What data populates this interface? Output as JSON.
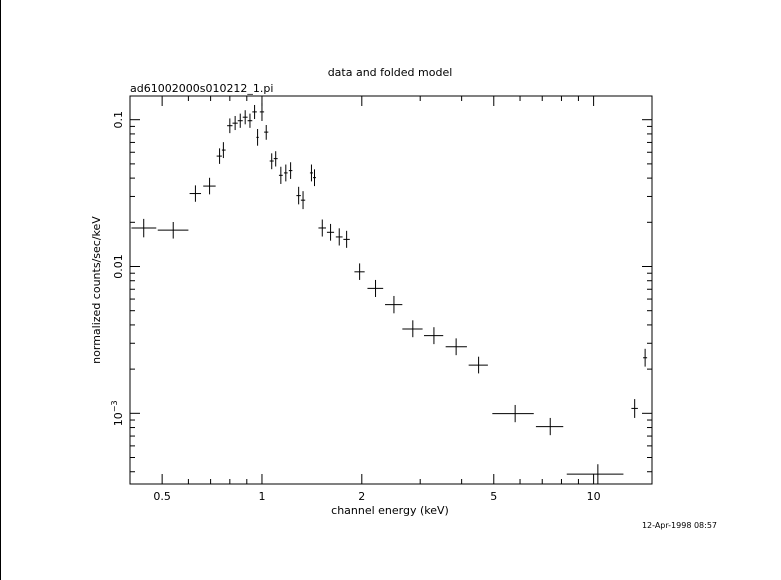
{
  "chart_data": {
    "type": "scatter",
    "title": "data and folded model",
    "subtitle": "ad61002000s010212_1.pi",
    "xlabel": "channel energy (keV)",
    "ylabel": "normalized counts/sec/keV",
    "timestamp": "12-Apr-1998 08:57",
    "x_scale": "log",
    "y_scale": "log",
    "xlim": [
      0.4,
      15
    ],
    "ylim": [
      0.00033,
      0.145
    ],
    "x_ticks": [
      {
        "value": 0.5,
        "label": "0.5"
      },
      {
        "value": 1,
        "label": "1"
      },
      {
        "value": 2,
        "label": "2"
      },
      {
        "value": 5,
        "label": "5"
      },
      {
        "value": 10,
        "label": "10"
      }
    ],
    "y_ticks": [
      {
        "value": 0.1,
        "label": "0.1"
      },
      {
        "value": 0.01,
        "label": "0.01"
      },
      {
        "value": 0.001,
        "label": "10^-3"
      }
    ],
    "grid": false,
    "points": [
      {
        "x": 0.44,
        "y": 0.0183,
        "xerr": [
          0.404,
          0.48
        ],
        "yerr": [
          0.0158,
          0.0211
        ]
      },
      {
        "x": 0.54,
        "y": 0.0177,
        "xerr": [
          0.485,
          0.6
        ],
        "yerr": [
          0.0155,
          0.0201
        ]
      },
      {
        "x": 0.63,
        "y": 0.0314,
        "xerr": [
          0.605,
          0.655
        ],
        "yerr": [
          0.0276,
          0.0357
        ]
      },
      {
        "x": 0.695,
        "y": 0.0353,
        "xerr": [
          0.665,
          0.725
        ],
        "yerr": [
          0.031,
          0.0402
        ]
      },
      {
        "x": 0.745,
        "y": 0.0565,
        "xerr": [
          0.73,
          0.757
        ],
        "yerr": [
          0.05,
          0.0638
        ]
      },
      {
        "x": 0.765,
        "y": 0.0621,
        "xerr": [
          0.757,
          0.777
        ],
        "yerr": [
          0.0548,
          0.0703
        ]
      },
      {
        "x": 0.8,
        "y": 0.091,
        "xerr": [
          0.785,
          0.815
        ],
        "yerr": [
          0.081,
          0.102
        ]
      },
      {
        "x": 0.83,
        "y": 0.0947,
        "xerr": [
          0.815,
          0.845
        ],
        "yerr": [
          0.085,
          0.106
        ]
      },
      {
        "x": 0.86,
        "y": 0.0984,
        "xerr": [
          0.845,
          0.875
        ],
        "yerr": [
          0.088,
          0.11
        ]
      },
      {
        "x": 0.89,
        "y": 0.104,
        "xerr": [
          0.875,
          0.905
        ],
        "yerr": [
          0.093,
          0.116
        ]
      },
      {
        "x": 0.92,
        "y": 0.0984,
        "xerr": [
          0.905,
          0.935
        ],
        "yerr": [
          0.088,
          0.11
        ]
      },
      {
        "x": 0.95,
        "y": 0.113,
        "xerr": [
          0.935,
          0.965
        ],
        "yerr": [
          0.101,
          0.126
        ]
      },
      {
        "x": 0.97,
        "y": 0.0758,
        "xerr": [
          0.962,
          0.978
        ],
        "yerr": [
          0.0665,
          0.0864
        ]
      },
      {
        "x": 1.0,
        "y": 0.113,
        "xerr": [
          0.985,
          1.015
        ],
        "yerr": [
          0.098,
          0.13
        ]
      },
      {
        "x": 1.03,
        "y": 0.0823,
        "xerr": [
          1.015,
          1.045
        ],
        "yerr": [
          0.073,
          0.092
        ]
      },
      {
        "x": 1.07,
        "y": 0.0523,
        "xerr": [
          1.055,
          1.085
        ],
        "yerr": [
          0.046,
          0.059
        ]
      },
      {
        "x": 1.1,
        "y": 0.0543,
        "xerr": [
          1.085,
          1.115
        ],
        "yerr": [
          0.048,
          0.061
        ]
      },
      {
        "x": 1.14,
        "y": 0.0418,
        "xerr": [
          1.125,
          1.155
        ],
        "yerr": [
          0.0365,
          0.0478
        ]
      },
      {
        "x": 1.18,
        "y": 0.0434,
        "xerr": [
          1.165,
          1.195
        ],
        "yerr": [
          0.038,
          0.0495
        ]
      },
      {
        "x": 1.22,
        "y": 0.045,
        "xerr": [
          1.205,
          1.235
        ],
        "yerr": [
          0.0395,
          0.0513
        ]
      },
      {
        "x": 1.29,
        "y": 0.0304,
        "xerr": [
          1.27,
          1.31
        ],
        "yerr": [
          0.0265,
          0.0349
        ]
      },
      {
        "x": 1.33,
        "y": 0.0283,
        "xerr": [
          1.31,
          1.35
        ],
        "yerr": [
          0.0246,
          0.0326
        ]
      },
      {
        "x": 1.41,
        "y": 0.0434,
        "xerr": [
          1.395,
          1.425
        ],
        "yerr": [
          0.038,
          0.0495
        ]
      },
      {
        "x": 1.44,
        "y": 0.0403,
        "xerr": [
          1.425,
          1.455
        ],
        "yerr": [
          0.0353,
          0.0459
        ]
      },
      {
        "x": 1.52,
        "y": 0.0183,
        "xerr": [
          1.48,
          1.56
        ],
        "yerr": [
          0.016,
          0.0209
        ]
      },
      {
        "x": 1.61,
        "y": 0.0171,
        "xerr": [
          1.57,
          1.65
        ],
        "yerr": [
          0.015,
          0.0195
        ]
      },
      {
        "x": 1.71,
        "y": 0.0159,
        "xerr": [
          1.67,
          1.75
        ],
        "yerr": [
          0.0139,
          0.0182
        ]
      },
      {
        "x": 1.8,
        "y": 0.0153,
        "xerr": [
          1.76,
          1.84
        ],
        "yerr": [
          0.0134,
          0.0175
        ]
      },
      {
        "x": 1.97,
        "y": 0.0092,
        "xerr": [
          1.9,
          2.04
        ],
        "yerr": [
          0.0081,
          0.0105
        ]
      },
      {
        "x": 2.2,
        "y": 0.0071,
        "xerr": [
          2.08,
          2.32
        ],
        "yerr": [
          0.0062,
          0.0081
        ]
      },
      {
        "x": 2.5,
        "y": 0.0055,
        "xerr": [
          2.35,
          2.65
        ],
        "yerr": [
          0.0048,
          0.0063
        ]
      },
      {
        "x": 2.85,
        "y": 0.00375,
        "xerr": [
          2.65,
          3.05
        ],
        "yerr": [
          0.0033,
          0.0043
        ]
      },
      {
        "x": 3.3,
        "y": 0.00338,
        "xerr": [
          3.08,
          3.52
        ],
        "yerr": [
          0.00296,
          0.00386
        ]
      },
      {
        "x": 3.85,
        "y": 0.00284,
        "xerr": [
          3.58,
          4.15
        ],
        "yerr": [
          0.00249,
          0.00324
        ]
      },
      {
        "x": 4.5,
        "y": 0.00213,
        "xerr": [
          4.2,
          4.8
        ],
        "yerr": [
          0.00187,
          0.00243
        ]
      },
      {
        "x": 5.8,
        "y": 0.000995,
        "xerr": [
          4.95,
          6.6
        ],
        "yerr": [
          0.00087,
          0.00114
        ]
      },
      {
        "x": 7.4,
        "y": 0.000812,
        "xerr": [
          6.7,
          8.1
        ],
        "yerr": [
          0.00071,
          0.00093
        ]
      },
      {
        "x": 10.3,
        "y": 0.000385,
        "xerr": [
          8.3,
          12.3
        ],
        "yerr": [
          0.00033,
          0.00045
        ]
      },
      {
        "x": 13.3,
        "y": 0.00108,
        "xerr": [
          13.0,
          13.6
        ],
        "yerr": [
          0.00093,
          0.00125
        ]
      },
      {
        "x": 14.3,
        "y": 0.00239,
        "xerr": [
          14.1,
          14.5
        ],
        "yerr": [
          0.00208,
          0.00275
        ]
      }
    ]
  }
}
